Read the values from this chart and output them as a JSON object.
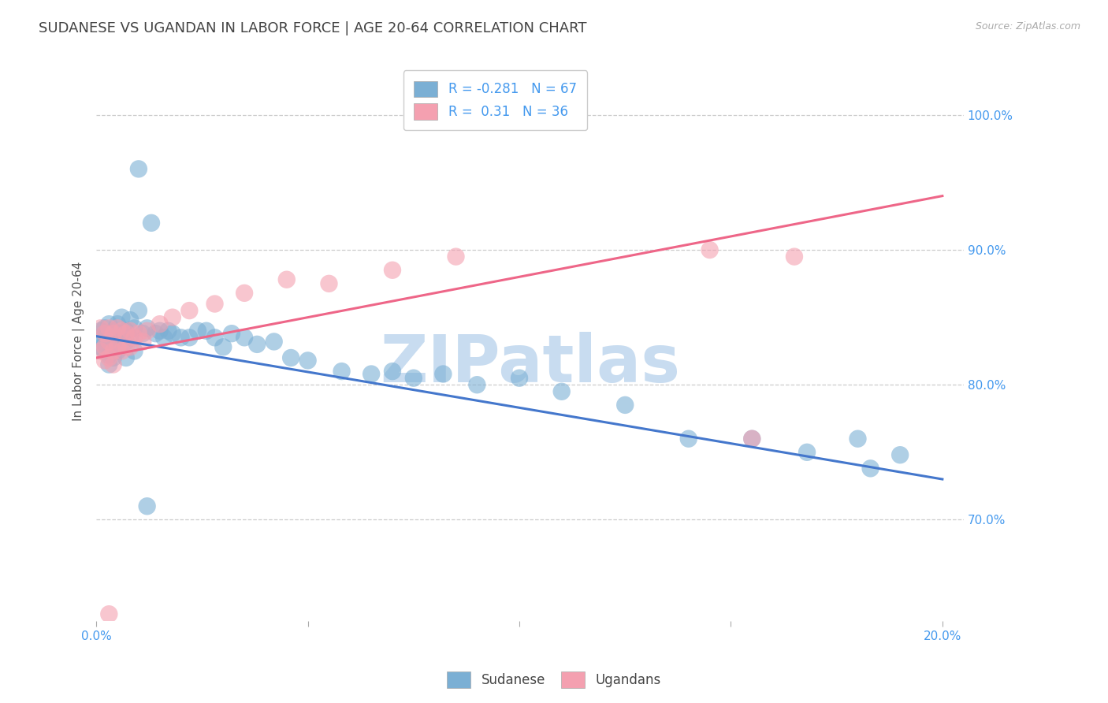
{
  "title": "SUDANESE VS UGANDAN IN LABOR FORCE | AGE 20-64 CORRELATION CHART",
  "source": "Source: ZipAtlas.com",
  "ylabel": "In Labor Force | Age 20-64",
  "watermark": "ZIPatlas",
  "xlim": [
    0.0,
    0.205
  ],
  "ylim": [
    0.625,
    1.04
  ],
  "xticks": [
    0.0,
    0.05,
    0.1,
    0.15,
    0.2
  ],
  "xticklabels": [
    "0.0%",
    "",
    "",
    "",
    "20.0%"
  ],
  "yticks": [
    0.7,
    0.8,
    0.9,
    1.0
  ],
  "yticklabels": [
    "70.0%",
    "80.0%",
    "90.0%",
    "100.0%"
  ],
  "blue_R": -0.281,
  "blue_N": 67,
  "pink_R": 0.31,
  "pink_N": 36,
  "blue_color": "#7BAFD4",
  "pink_color": "#F4A0B0",
  "blue_line_color": "#4477CC",
  "pink_line_color": "#EE6688",
  "sudanese_label": "Sudanese",
  "ugandans_label": "Ugandans",
  "blue_line_x0": 0.0,
  "blue_line_y0": 0.836,
  "blue_line_x1": 0.2,
  "blue_line_y1": 0.73,
  "pink_line_x0": 0.0,
  "pink_line_x1": 0.2,
  "pink_line_y0": 0.82,
  "pink_line_y1": 0.94,
  "title_fontsize": 13,
  "axis_label_fontsize": 11,
  "tick_fontsize": 11,
  "legend_fontsize": 12,
  "watermark_fontsize": 60,
  "watermark_color": "#C8DCF0",
  "background_color": "#FFFFFF",
  "grid_color": "#CCCCCC",
  "axis_color": "#4499EE",
  "title_color": "#444444",
  "blue_scatter_x": [
    0.001,
    0.001,
    0.001,
    0.002,
    0.002,
    0.002,
    0.002,
    0.003,
    0.003,
    0.003,
    0.003,
    0.003,
    0.004,
    0.004,
    0.004,
    0.004,
    0.005,
    0.005,
    0.005,
    0.006,
    0.006,
    0.006,
    0.007,
    0.007,
    0.007,
    0.008,
    0.008,
    0.009,
    0.009,
    0.01,
    0.01,
    0.011,
    0.012,
    0.013,
    0.014,
    0.015,
    0.016,
    0.017,
    0.018,
    0.02,
    0.022,
    0.024,
    0.026,
    0.028,
    0.03,
    0.032,
    0.035,
    0.038,
    0.042,
    0.046,
    0.05,
    0.058,
    0.065,
    0.07,
    0.075,
    0.082,
    0.09,
    0.1,
    0.11,
    0.125,
    0.14,
    0.155,
    0.168,
    0.18,
    0.19,
    0.183,
    0.012
  ],
  "blue_scatter_y": [
    0.84,
    0.835,
    0.828,
    0.842,
    0.83,
    0.838,
    0.825,
    0.845,
    0.832,
    0.838,
    0.822,
    0.815,
    0.84,
    0.835,
    0.828,
    0.82,
    0.845,
    0.835,
    0.825,
    0.85,
    0.838,
    0.828,
    0.84,
    0.832,
    0.82,
    0.848,
    0.835,
    0.842,
    0.825,
    0.855,
    0.96,
    0.838,
    0.842,
    0.92,
    0.838,
    0.84,
    0.835,
    0.84,
    0.838,
    0.835,
    0.835,
    0.84,
    0.84,
    0.835,
    0.828,
    0.838,
    0.835,
    0.83,
    0.832,
    0.82,
    0.818,
    0.81,
    0.808,
    0.81,
    0.805,
    0.808,
    0.8,
    0.805,
    0.795,
    0.785,
    0.76,
    0.76,
    0.75,
    0.76,
    0.748,
    0.738,
    0.71
  ],
  "pink_scatter_x": [
    0.001,
    0.001,
    0.002,
    0.002,
    0.002,
    0.003,
    0.003,
    0.003,
    0.004,
    0.004,
    0.004,
    0.005,
    0.005,
    0.006,
    0.006,
    0.007,
    0.007,
    0.008,
    0.008,
    0.009,
    0.01,
    0.011,
    0.012,
    0.015,
    0.018,
    0.022,
    0.028,
    0.035,
    0.045,
    0.055,
    0.07,
    0.085,
    0.145,
    0.155,
    0.165,
    0.003
  ],
  "pink_scatter_y": [
    0.842,
    0.825,
    0.838,
    0.828,
    0.818,
    0.842,
    0.832,
    0.82,
    0.838,
    0.825,
    0.815,
    0.842,
    0.828,
    0.84,
    0.825,
    0.838,
    0.828,
    0.84,
    0.828,
    0.835,
    0.838,
    0.832,
    0.84,
    0.845,
    0.85,
    0.855,
    0.86,
    0.868,
    0.878,
    0.875,
    0.885,
    0.895,
    0.9,
    0.76,
    0.895,
    0.63
  ]
}
